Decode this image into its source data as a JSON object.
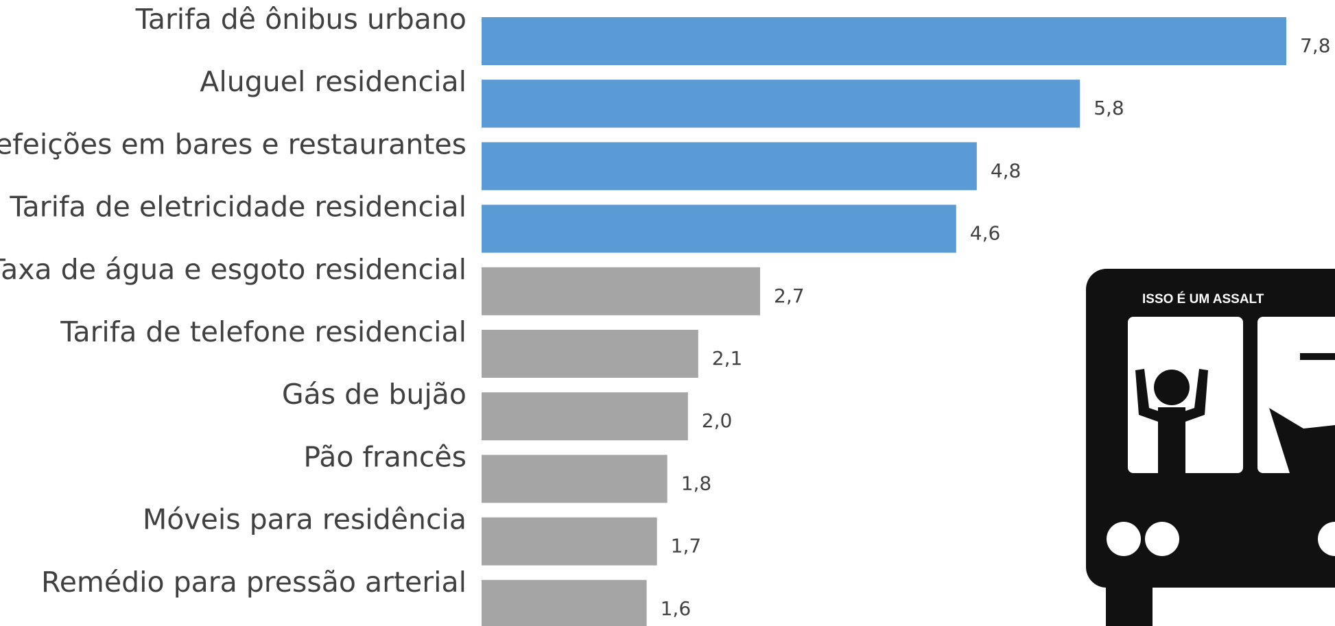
{
  "chart_data": {
    "type": "barh",
    "categories": [
      "Tarifa dê ônibus urbano",
      "Aluguel residencial",
      "Refeições em bares e restaurantes",
      "Tarifa de eletricidade residencial",
      "Taxa de água e esgoto residencial",
      "Tarifa de telefone residencial",
      "Gás de bujão",
      "Pão francês",
      "Móveis para residência",
      "Remédio para pressão arterial"
    ],
    "values": [
      7.8,
      5.8,
      4.8,
      4.6,
      2.7,
      2.1,
      2.0,
      1.8,
      1.7,
      1.6
    ],
    "value_labels": [
      "7,8",
      "5,8",
      "4,8",
      "4,6",
      "2,7",
      "2,1",
      "2,0",
      "1,8",
      "1,7",
      "1,6"
    ],
    "colors": [
      "#5b9bd5",
      "#5b9bd5",
      "#5b9bd5",
      "#5b9bd5",
      "#a5a5a5",
      "#a5a5a5",
      "#a5a5a5",
      "#a5a5a5",
      "#a5a5a5",
      "#a5a5a5"
    ],
    "annotation": "ISSO É UM ASSALT"
  }
}
